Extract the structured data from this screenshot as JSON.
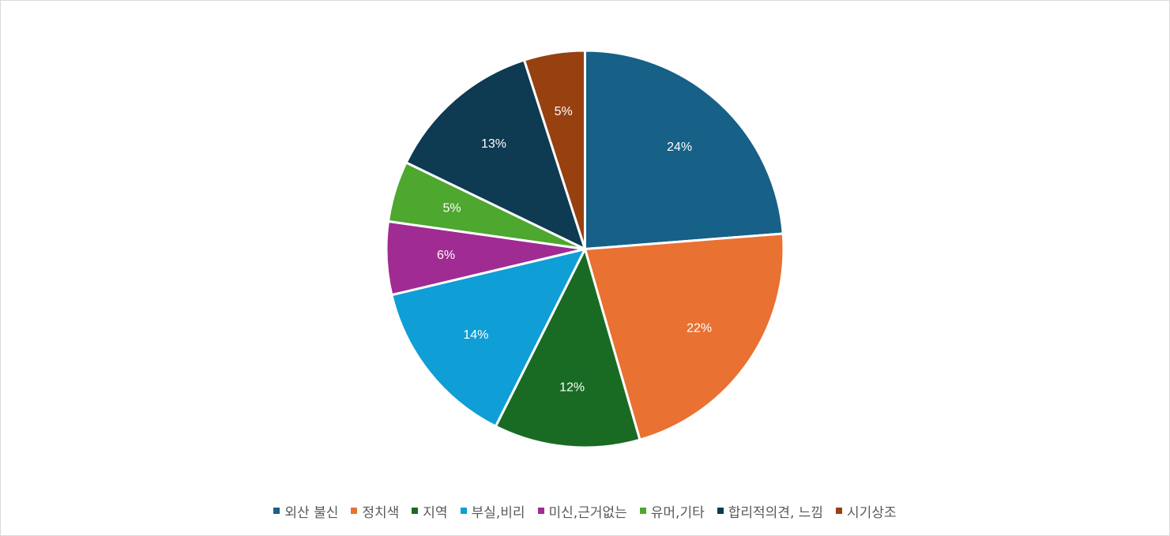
{
  "chart_data": {
    "type": "pie",
    "title": "",
    "start_angle_deg": 0,
    "direction": "clockwise",
    "legend_position": "bottom",
    "slices": [
      {
        "name": "외산 불신",
        "value": 24,
        "label": "24%",
        "color": "#176087"
      },
      {
        "name": "정치색",
        "value": 22,
        "label": "22%",
        "color": "#E97132"
      },
      {
        "name": "지역",
        "value": 12,
        "label": "12%",
        "color": "#196B24"
      },
      {
        "name": "부실,비리",
        "value": 14,
        "label": "14%",
        "color": "#0F9ED5"
      },
      {
        "name": "미신,근거없는",
        "value": 6,
        "label": "6%",
        "color": "#A02B93"
      },
      {
        "name": "유머,기타",
        "value": 5,
        "label": "5%",
        "color": "#4EA72E"
      },
      {
        "name": "합리적의견, 느낌",
        "value": 13,
        "label": "13%",
        "color": "#0E3A52"
      },
      {
        "name": "시기상조",
        "value": 5,
        "label": "5%",
        "color": "#974010"
      }
    ]
  }
}
